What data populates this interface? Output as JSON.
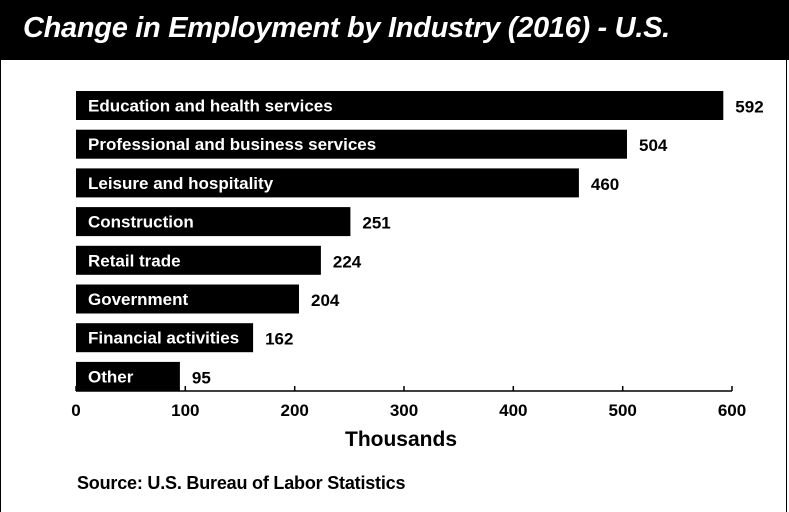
{
  "chart_data": {
    "type": "bar",
    "orientation": "horizontal",
    "title": "Change in Employment by Industry (2016) - U.S.",
    "xlabel": "Thousands",
    "ylabel": "",
    "categories": [
      "Education and health services",
      "Professional and business services",
      "Leisure and hospitality",
      "Construction",
      "Retail trade",
      "Government",
      "Financial activities",
      "Other"
    ],
    "values": [
      592,
      504,
      460,
      251,
      224,
      204,
      162,
      95
    ],
    "value_labels": [
      "592",
      "504",
      "460",
      "251",
      "224",
      "204",
      "162",
      "95"
    ],
    "xlim": [
      0,
      600
    ],
    "x_ticks": [
      "0",
      "100",
      "200",
      "300",
      "400",
      "500",
      "600"
    ],
    "grid": false,
    "legend": "none",
    "bar_color": "#000000",
    "source": "Source: U.S. Bureau of Labor Statistics"
  }
}
